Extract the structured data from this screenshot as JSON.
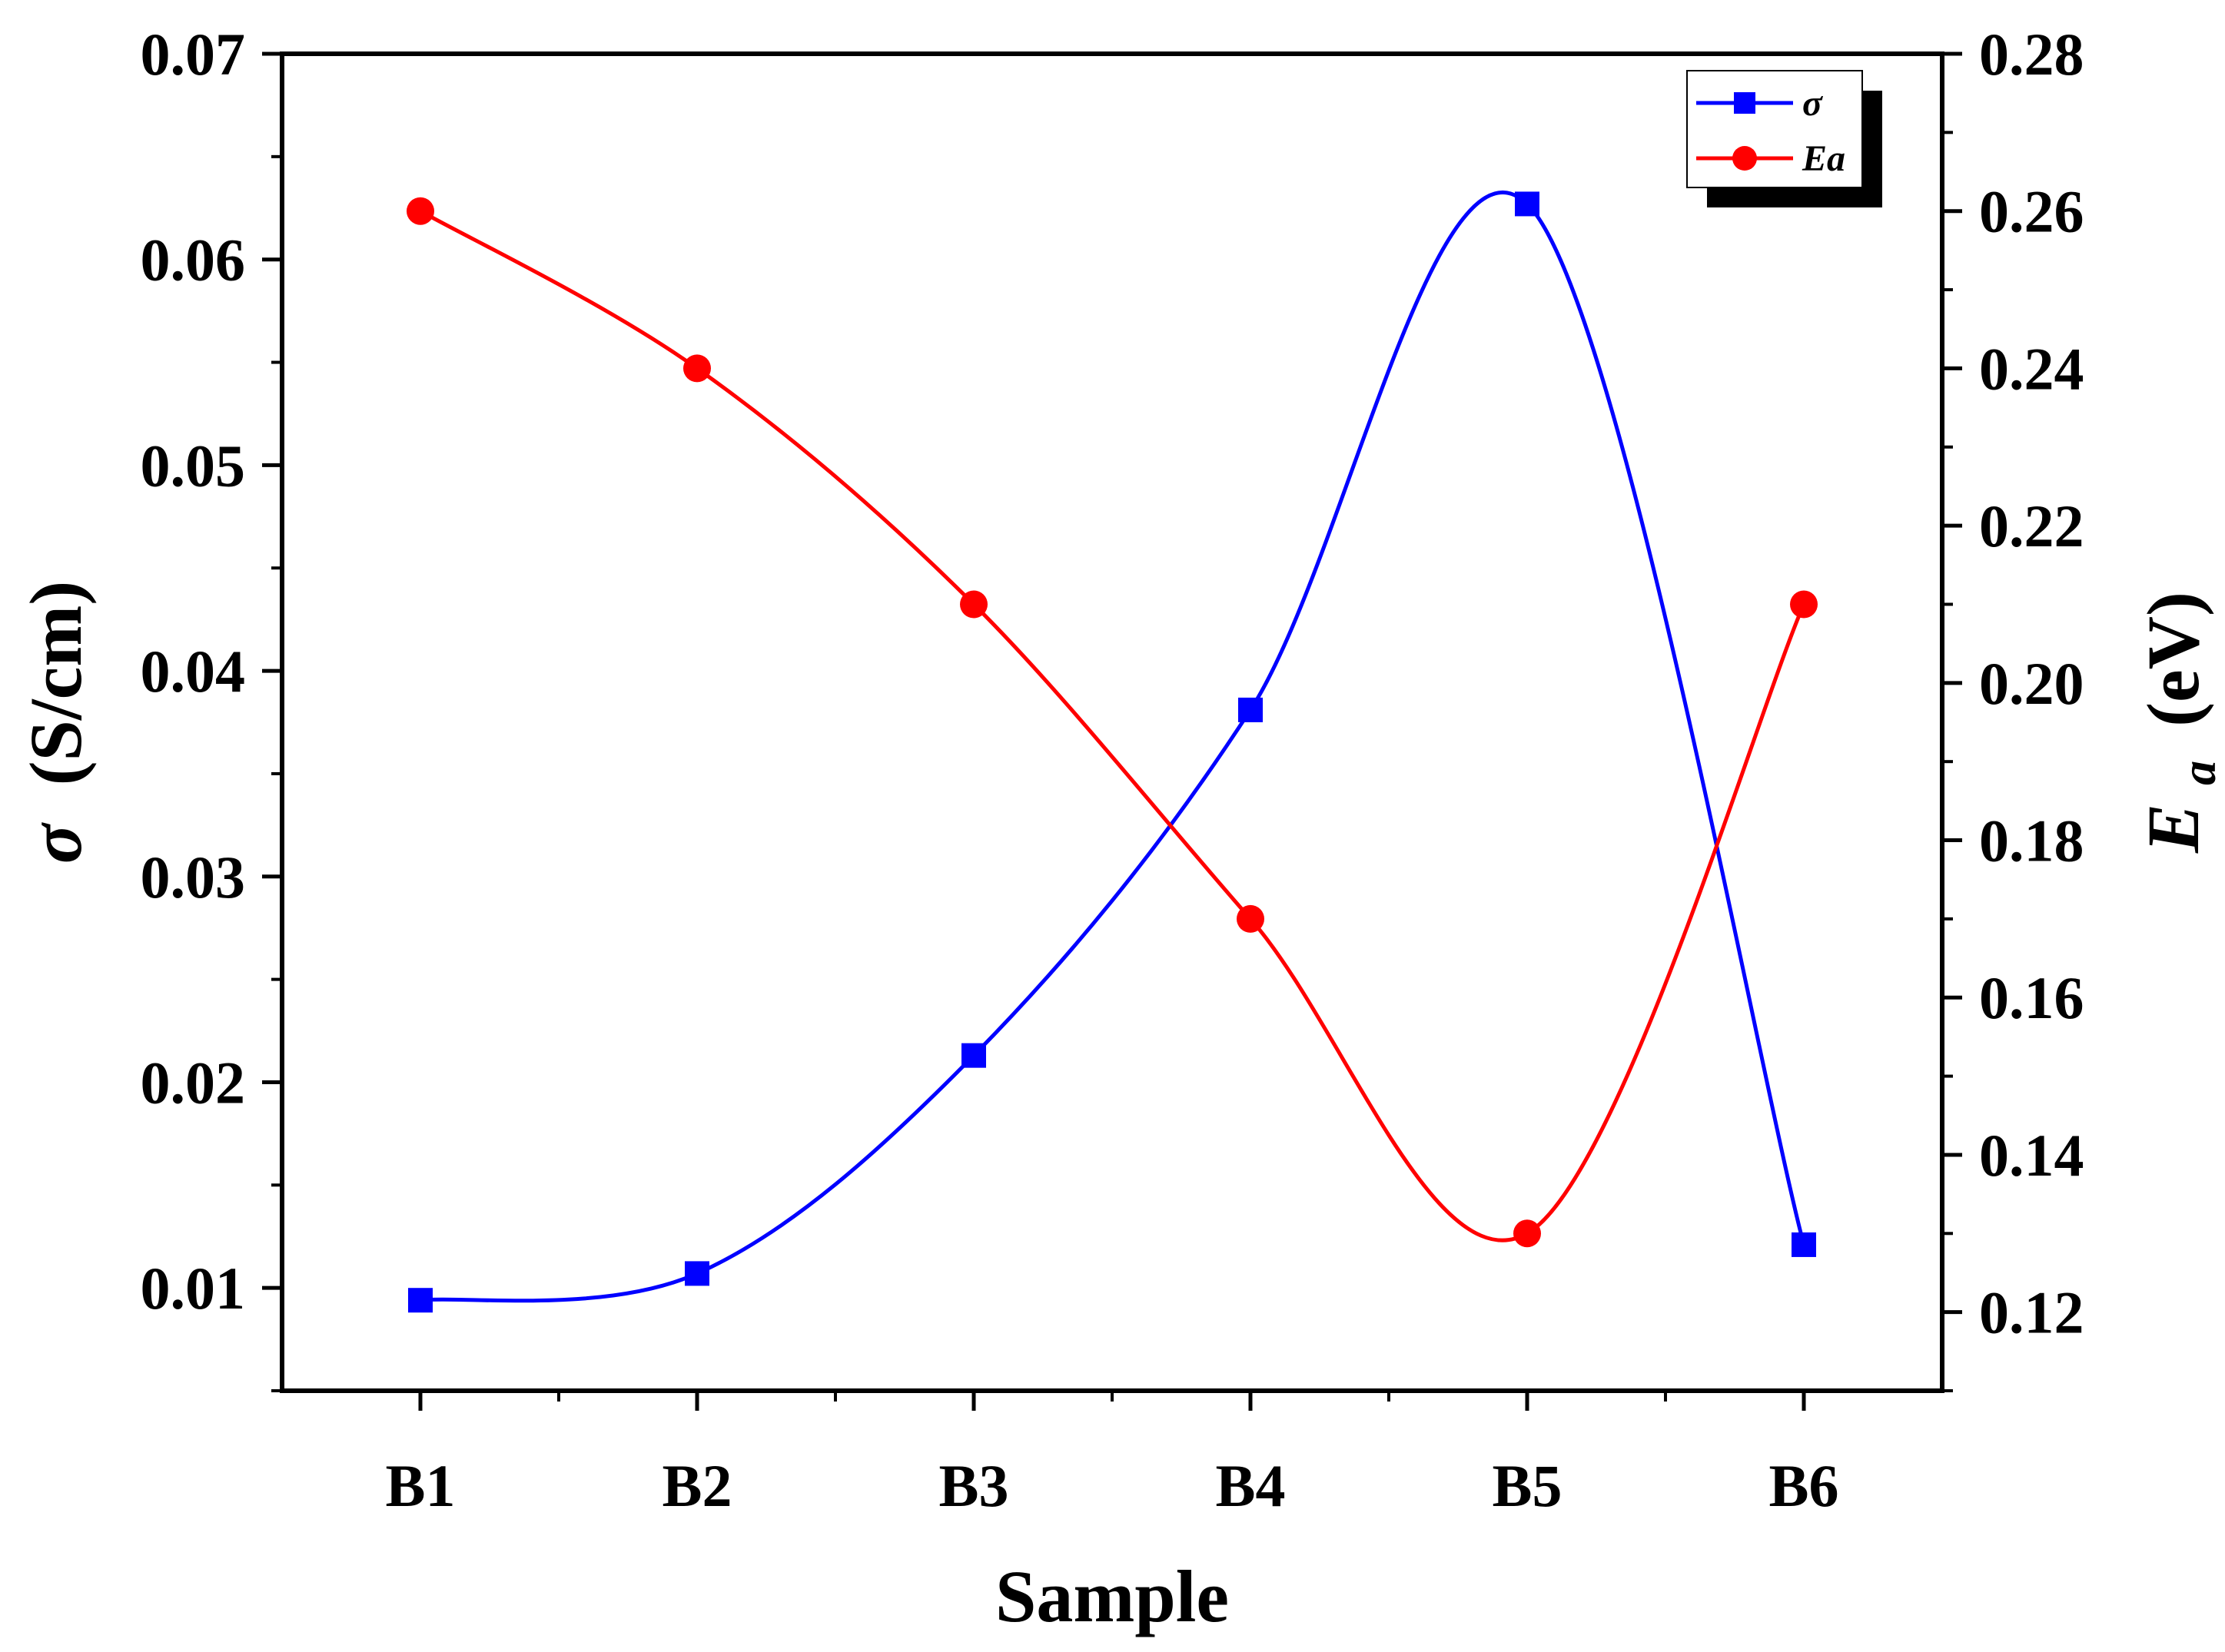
{
  "chart_data": {
    "type": "line",
    "title": "",
    "xlabel": "Sample",
    "categories": [
      "B1",
      "B2",
      "B3",
      "B4",
      "B5",
      "B6"
    ],
    "y_left": {
      "label_symbol": "σ",
      "label_unit": "(S/cm)",
      "ylim": [
        0.005,
        0.07
      ],
      "ticks": [
        "0.01",
        "0.02",
        "0.03",
        "0.04",
        "0.05",
        "0.06",
        "0.07"
      ]
    },
    "y_right": {
      "label_symbol": "E",
      "label_subscript": "a",
      "label_unit": "(eV)",
      "ylim": [
        0.11,
        0.28
      ],
      "ticks": [
        "0.12",
        "0.14",
        "0.16",
        "0.18",
        "0.20",
        "0.22",
        "0.24",
        "0.26",
        "0.28"
      ]
    },
    "series": [
      {
        "name": "σ",
        "axis": "left",
        "color": "#0000ff",
        "marker": "square",
        "values": [
          0.0094,
          0.0107,
          0.0213,
          0.0381,
          0.0627,
          0.0121
        ]
      },
      {
        "name": "Ea",
        "axis": "right",
        "color": "#ff0000",
        "marker": "circle",
        "values": [
          0.26,
          0.24,
          0.21,
          0.17,
          0.13,
          0.21
        ]
      }
    ],
    "legend": {
      "position": "top-right"
    }
  }
}
